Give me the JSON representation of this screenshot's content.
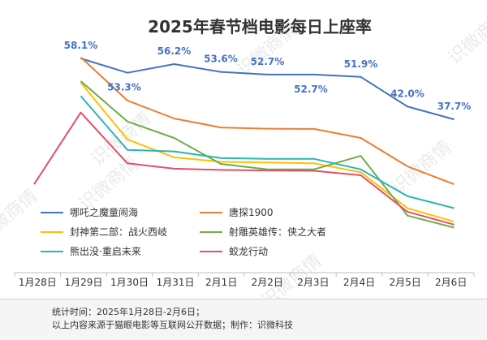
{
  "chart_data": {
    "type": "line",
    "title": "2025年春节档电影每日上座率",
    "categories": [
      "1月28日",
      "1月29日",
      "1月30日",
      "1月31日",
      "2月1日",
      "2月2日",
      "2月3日",
      "2月4日",
      "2月5日",
      "2月6日"
    ],
    "unit": "%",
    "ylim": [
      0,
      60
    ],
    "grid": false,
    "legend_position": "bottom-inside",
    "watermark": "识微商情",
    "series": [
      {
        "name": "哪吒之魔童闹海",
        "color": "#4472c4",
        "labelled": true,
        "values": [
          null,
          58.1,
          53.3,
          56.2,
          53.6,
          52.7,
          52.7,
          51.9,
          42.0,
          37.7
        ]
      },
      {
        "name": "唐探1900",
        "color": "#ed7d31",
        "labelled": false,
        "values": [
          null,
          58.5,
          44.0,
          38.0,
          35.0,
          34.6,
          34.5,
          31.5,
          22.0,
          16.0
        ]
      },
      {
        "name": "封神第二部：战火西岐",
        "color": "#ffc000",
        "labelled": false,
        "values": [
          null,
          50.0,
          31.0,
          25.0,
          23.5,
          23.3,
          23.0,
          20.0,
          8.0,
          3.5
        ]
      },
      {
        "name": "射雕英雄传：侠之大者",
        "color": "#70ad47",
        "labelled": false,
        "values": [
          null,
          50.5,
          37.0,
          31.5,
          22.8,
          21.0,
          21.0,
          25.5,
          5.5,
          1.5
        ]
      },
      {
        "name": "熊出没·重启未来",
        "color": "#2ab5b4",
        "labelled": false,
        "values": [
          null,
          45.5,
          27.5,
          27.0,
          24.8,
          24.5,
          24.5,
          21.0,
          12.0,
          8.0
        ]
      },
      {
        "name": "蛟龙行动",
        "color": "#e0506a",
        "labelled": false,
        "values": [
          16.0,
          40.0,
          23.0,
          21.2,
          20.8,
          20.6,
          20.5,
          19.0,
          6.8,
          2.5
        ]
      }
    ]
  },
  "footer": {
    "line1": "统计时间：2025年1月28日-2月6日；",
    "line2": "以上内容来源于猫眼电影等互联网公开数据；制作：识微科技"
  }
}
